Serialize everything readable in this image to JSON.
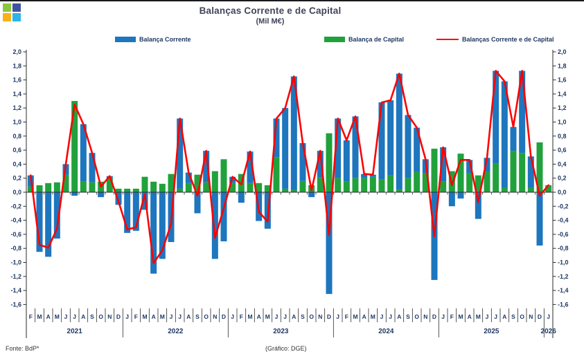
{
  "page": {
    "top_strip_color": "#1a1a1a",
    "background": "#ffffff"
  },
  "logo": {
    "colors": {
      "top_left": "#8cc63e",
      "top_right": "#4053a3",
      "bottom_left": "#f9b117",
      "bottom_right": "#2eb3e8"
    }
  },
  "header": {
    "title": "Balanças Corrente e de Capital",
    "subtitle": "(Mil M€)"
  },
  "legend": {
    "items": [
      {
        "label": "Balança Corrente",
        "color": "#1d76be",
        "swatch": "bar"
      },
      {
        "label": "Balança de Capital",
        "color": "#21a13c",
        "swatch": "bar"
      },
      {
        "label": "Balanças Corrente e de Capital",
        "color": "#ff0000",
        "swatch": "line"
      }
    ]
  },
  "footer": {
    "source": "Fonte: BdP*",
    "credit": "(Gráfico: DGE)"
  },
  "chart_data": {
    "type": "bar",
    "stacked": true,
    "overlay_line": true,
    "title": "Balanças Corrente e de Capital",
    "units_label": "(Mil M€)",
    "grid": false,
    "legend_position": "top",
    "ylim": [
      -1.6,
      2.0
    ],
    "ytick_step": 0.2,
    "y_tick_labels": [
      "2,0",
      "1,8",
      "1,6",
      "1,4",
      "1,2",
      "1,0",
      "0,8",
      "0,6",
      "0,4",
      "0,2",
      "0,0",
      "-0,2",
      "-0,4",
      "-0,6",
      "-0,8",
      "-1,0",
      "-1,2",
      "-1,4",
      "-1,6"
    ],
    "x_month_labels": [
      "F",
      "M",
      "A",
      "M",
      "J",
      "J",
      "A",
      "S",
      "O",
      "N",
      "D",
      "J",
      "F",
      "M",
      "A",
      "M",
      "J",
      "J",
      "A",
      "S",
      "O",
      "N",
      "D",
      "J",
      "F",
      "M",
      "A",
      "M",
      "J",
      "J",
      "A",
      "S",
      "O",
      "N",
      "D",
      "J",
      "F",
      "M",
      "A",
      "M",
      "J",
      "J",
      "A",
      "S",
      "O",
      "N",
      "D",
      "J",
      "F",
      "M",
      "A",
      "M",
      "J",
      "J",
      "A",
      "S",
      "O",
      "N",
      "D",
      "J"
    ],
    "year_groups": [
      {
        "label": "2021",
        "months": 11
      },
      {
        "label": "2022",
        "months": 12
      },
      {
        "label": "2023",
        "months": 12
      },
      {
        "label": "2024",
        "months": 12
      },
      {
        "label": "2025",
        "months": 12
      },
      {
        "label": "2026",
        "months": 1
      }
    ],
    "series": [
      {
        "name": "Balança Corrente",
        "render": "bar",
        "color": "#1d76be",
        "values": [
          0.16,
          -0.85,
          -0.92,
          -0.66,
          0.15,
          -0.05,
          0.82,
          0.42,
          -0.07,
          0.03,
          -0.18,
          -0.58,
          -0.55,
          -0.25,
          -1.16,
          -0.95,
          -0.71,
          1.0,
          0.15,
          -0.3,
          0.45,
          -0.95,
          -0.7,
          0.09,
          -0.15,
          0.45,
          -0.41,
          -0.52,
          0.55,
          1.15,
          1.62,
          0.54,
          -0.07,
          0.38,
          -1.45,
          0.85,
          0.59,
          0.88,
          0.06,
          0.03,
          1.1,
          1.07,
          1.65,
          0.9,
          0.63,
          0.2,
          -1.25,
          0.49,
          -0.2,
          -0.09,
          0.19,
          -0.38,
          0.2,
          1.32,
          1.52,
          0.34,
          1.17,
          0.45,
          -0.76,
          0.0
        ]
      },
      {
        "name": "Balança de Capital",
        "render": "bar",
        "color": "#21a13c",
        "values": [
          0.08,
          0.1,
          0.13,
          0.14,
          0.25,
          1.3,
          0.15,
          0.14,
          0.15,
          0.2,
          0.05,
          0.05,
          0.05,
          0.22,
          0.15,
          0.12,
          0.26,
          0.05,
          0.13,
          0.25,
          0.14,
          0.3,
          0.47,
          0.13,
          0.26,
          0.13,
          0.13,
          0.1,
          0.5,
          0.05,
          0.03,
          0.16,
          0.1,
          0.21,
          0.84,
          0.2,
          0.15,
          0.2,
          0.2,
          0.22,
          0.18,
          0.24,
          0.04,
          0.2,
          0.29,
          0.27,
          0.62,
          0.15,
          0.3,
          0.55,
          0.27,
          0.24,
          0.29,
          0.41,
          0.06,
          0.59,
          0.56,
          0.06,
          0.71,
          0.1
        ]
      },
      {
        "name": "Balanças Corrente e de Capital",
        "render": "line",
        "color": "#ff0000",
        "values": [
          0.24,
          -0.75,
          -0.79,
          -0.52,
          0.4,
          1.25,
          0.97,
          0.56,
          0.08,
          0.23,
          -0.13,
          -0.53,
          -0.5,
          -0.03,
          -1.01,
          -0.83,
          -0.45,
          1.05,
          0.28,
          -0.05,
          0.59,
          -0.65,
          -0.23,
          0.22,
          0.11,
          0.58,
          -0.28,
          -0.42,
          1.05,
          1.2,
          1.65,
          0.7,
          0.03,
          0.59,
          -0.61,
          1.05,
          0.74,
          1.08,
          0.26,
          0.25,
          1.28,
          1.31,
          1.69,
          1.1,
          0.92,
          0.47,
          -0.63,
          0.64,
          0.1,
          0.46,
          0.46,
          -0.14,
          0.49,
          1.73,
          1.58,
          0.93,
          1.73,
          0.51,
          -0.05,
          0.1
        ]
      }
    ],
    "axis_text_color": "#1f3864",
    "axis_line_color": "#2b2b2b"
  }
}
